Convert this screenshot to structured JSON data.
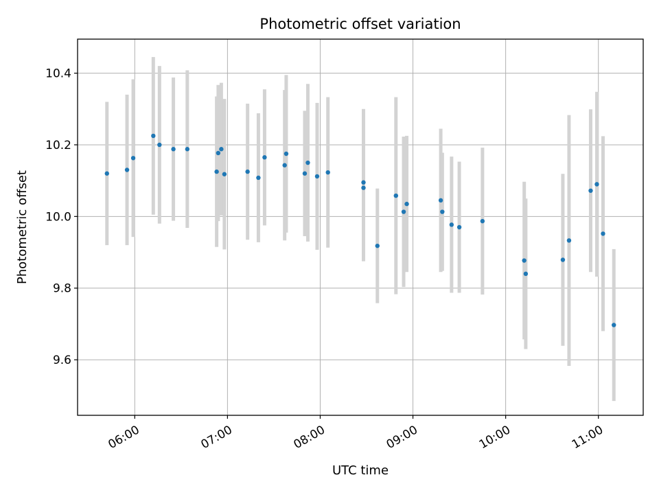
{
  "chart_data": {
    "type": "scatter",
    "title": "Photometric offset variation",
    "xlabel": "UTC time",
    "ylabel": "Photometric offset",
    "x_axis_type": "time",
    "x_tick_labels": [
      "06:00",
      "07:00",
      "08:00",
      "09:00",
      "10:00",
      "11:00"
    ],
    "y_tick_labels": [
      "9.6",
      "9.8",
      "10.0",
      "10.2",
      "10.4"
    ],
    "y_ticks": [
      9.6,
      9.8,
      10.0,
      10.2,
      10.4
    ],
    "xlim": [
      "05:23",
      "11:29"
    ],
    "ylim": [
      9.445,
      10.495
    ],
    "grid": true,
    "legend": "none",
    "colors": {
      "marker": "#1f77b4",
      "errorbar": "#d3d3d3",
      "grid": "#b0b0b0",
      "axis": "#000000"
    },
    "points": [
      {
        "x": "05:42",
        "y": 10.12,
        "err": 0.2
      },
      {
        "x": "05:55",
        "y": 10.13,
        "err": 0.21
      },
      {
        "x": "05:59",
        "y": 10.163,
        "err": 0.22
      },
      {
        "x": "06:12",
        "y": 10.225,
        "err": 0.22
      },
      {
        "x": "06:16",
        "y": 10.2,
        "err": 0.22
      },
      {
        "x": "06:25",
        "y": 10.188,
        "err": 0.2
      },
      {
        "x": "06:34",
        "y": 10.188,
        "err": 0.22
      },
      {
        "x": "06:53",
        "y": 10.125,
        "err": 0.21
      },
      {
        "x": "06:54",
        "y": 10.177,
        "err": 0.19
      },
      {
        "x": "06:56",
        "y": 10.188,
        "err": 0.185
      },
      {
        "x": "06:58",
        "y": 10.118,
        "err": 0.21
      },
      {
        "x": "07:13",
        "y": 10.125,
        "err": 0.19
      },
      {
        "x": "07:20",
        "y": 10.108,
        "err": 0.18
      },
      {
        "x": "07:24",
        "y": 10.165,
        "err": 0.19
      },
      {
        "x": "07:37",
        "y": 10.143,
        "err": 0.21
      },
      {
        "x": "07:38",
        "y": 10.175,
        "err": 0.22
      },
      {
        "x": "07:50",
        "y": 10.12,
        "err": 0.175
      },
      {
        "x": "07:52",
        "y": 10.15,
        "err": 0.22
      },
      {
        "x": "07:58",
        "y": 10.112,
        "err": 0.205
      },
      {
        "x": "08:05",
        "y": 10.123,
        "err": 0.21
      },
      {
        "x": "08:28",
        "y": 10.095,
        "err": 0.205
      },
      {
        "x": "08:28",
        "y": 10.08,
        "err": 0.205
      },
      {
        "x": "08:37",
        "y": 9.918,
        "err": 0.16
      },
      {
        "x": "08:49",
        "y": 10.058,
        "err": 0.275
      },
      {
        "x": "08:54",
        "y": 10.013,
        "err": 0.21
      },
      {
        "x": "08:56",
        "y": 10.035,
        "err": 0.19
      },
      {
        "x": "09:18",
        "y": 10.045,
        "err": 0.2
      },
      {
        "x": "09:19",
        "y": 10.013,
        "err": 0.165
      },
      {
        "x": "09:25",
        "y": 9.977,
        "err": 0.19
      },
      {
        "x": "09:30",
        "y": 9.97,
        "err": 0.183
      },
      {
        "x": "09:45",
        "y": 9.987,
        "err": 0.205
      },
      {
        "x": "10:12",
        "y": 9.877,
        "err": 0.22
      },
      {
        "x": "10:13",
        "y": 9.84,
        "err": 0.21
      },
      {
        "x": "10:37",
        "y": 9.879,
        "err": 0.24
      },
      {
        "x": "10:41",
        "y": 9.933,
        "err": 0.35
      },
      {
        "x": "10:55",
        "y": 10.072,
        "err": 0.227
      },
      {
        "x": "10:59",
        "y": 10.09,
        "err": 0.258
      },
      {
        "x": "11:03",
        "y": 9.952,
        "err": 0.272
      },
      {
        "x": "11:10",
        "y": 9.697,
        "err": 0.212
      }
    ]
  }
}
